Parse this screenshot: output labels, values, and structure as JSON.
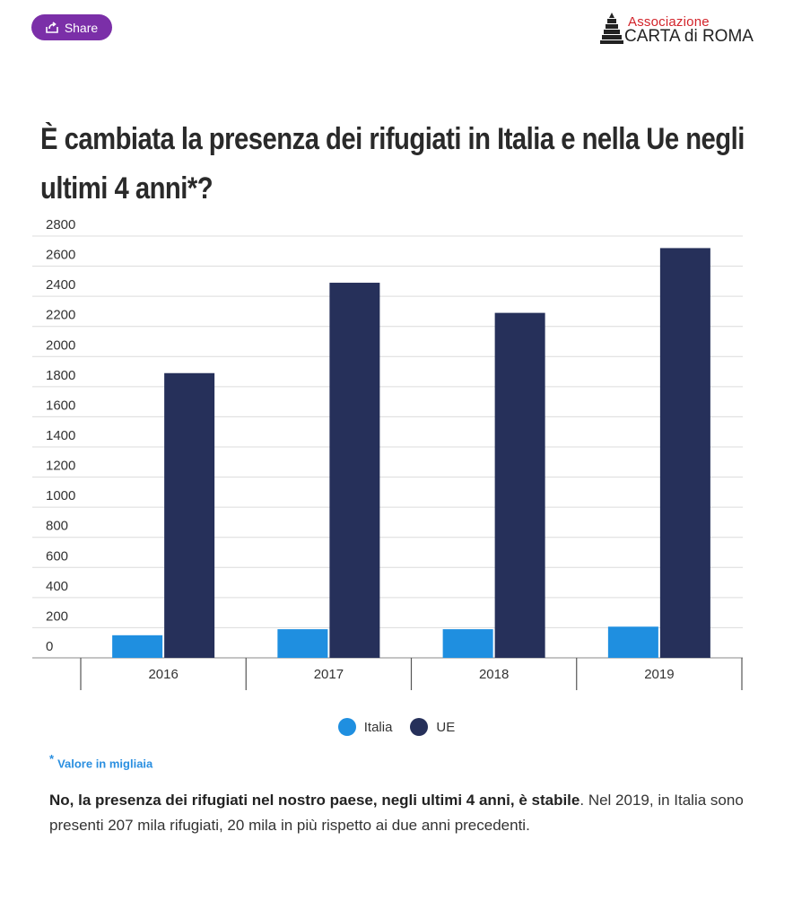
{
  "header": {
    "share_label": "Share",
    "logo_top": "Associazione",
    "logo_name": "CARTA di ROMA"
  },
  "title": "È cambiata la presenza dei rifugiati in Italia e nella Ue negli ultimi 4 anni*?",
  "chart_data": {
    "type": "bar",
    "categories": [
      "2016",
      "2017",
      "2018",
      "2019"
    ],
    "series": [
      {
        "name": "Italia",
        "color": "#1f8fe0",
        "values": [
          150,
          190,
          190,
          207
        ]
      },
      {
        "name": "UE",
        "color": "#26305a",
        "values": [
          1890,
          2490,
          2290,
          2720
        ]
      }
    ],
    "yticks": [
      0,
      200,
      400,
      600,
      800,
      1000,
      1200,
      1400,
      1600,
      1800,
      2000,
      2200,
      2400,
      2600,
      2800
    ],
    "ylim": [
      0,
      2800
    ],
    "grid": true,
    "legend": "bottom-center"
  },
  "note": {
    "star": "*",
    "text": "Valore in migliaia"
  },
  "footer": {
    "bold": "No, la presenza dei rifugiati nel nostro paese, negli ultimi 4 anni, è stabile",
    "rest": ". Nel 2019, in Italia sono presenti 207 mila rifugiati, 20 mila in più rispetto ai due anni precedenti."
  }
}
